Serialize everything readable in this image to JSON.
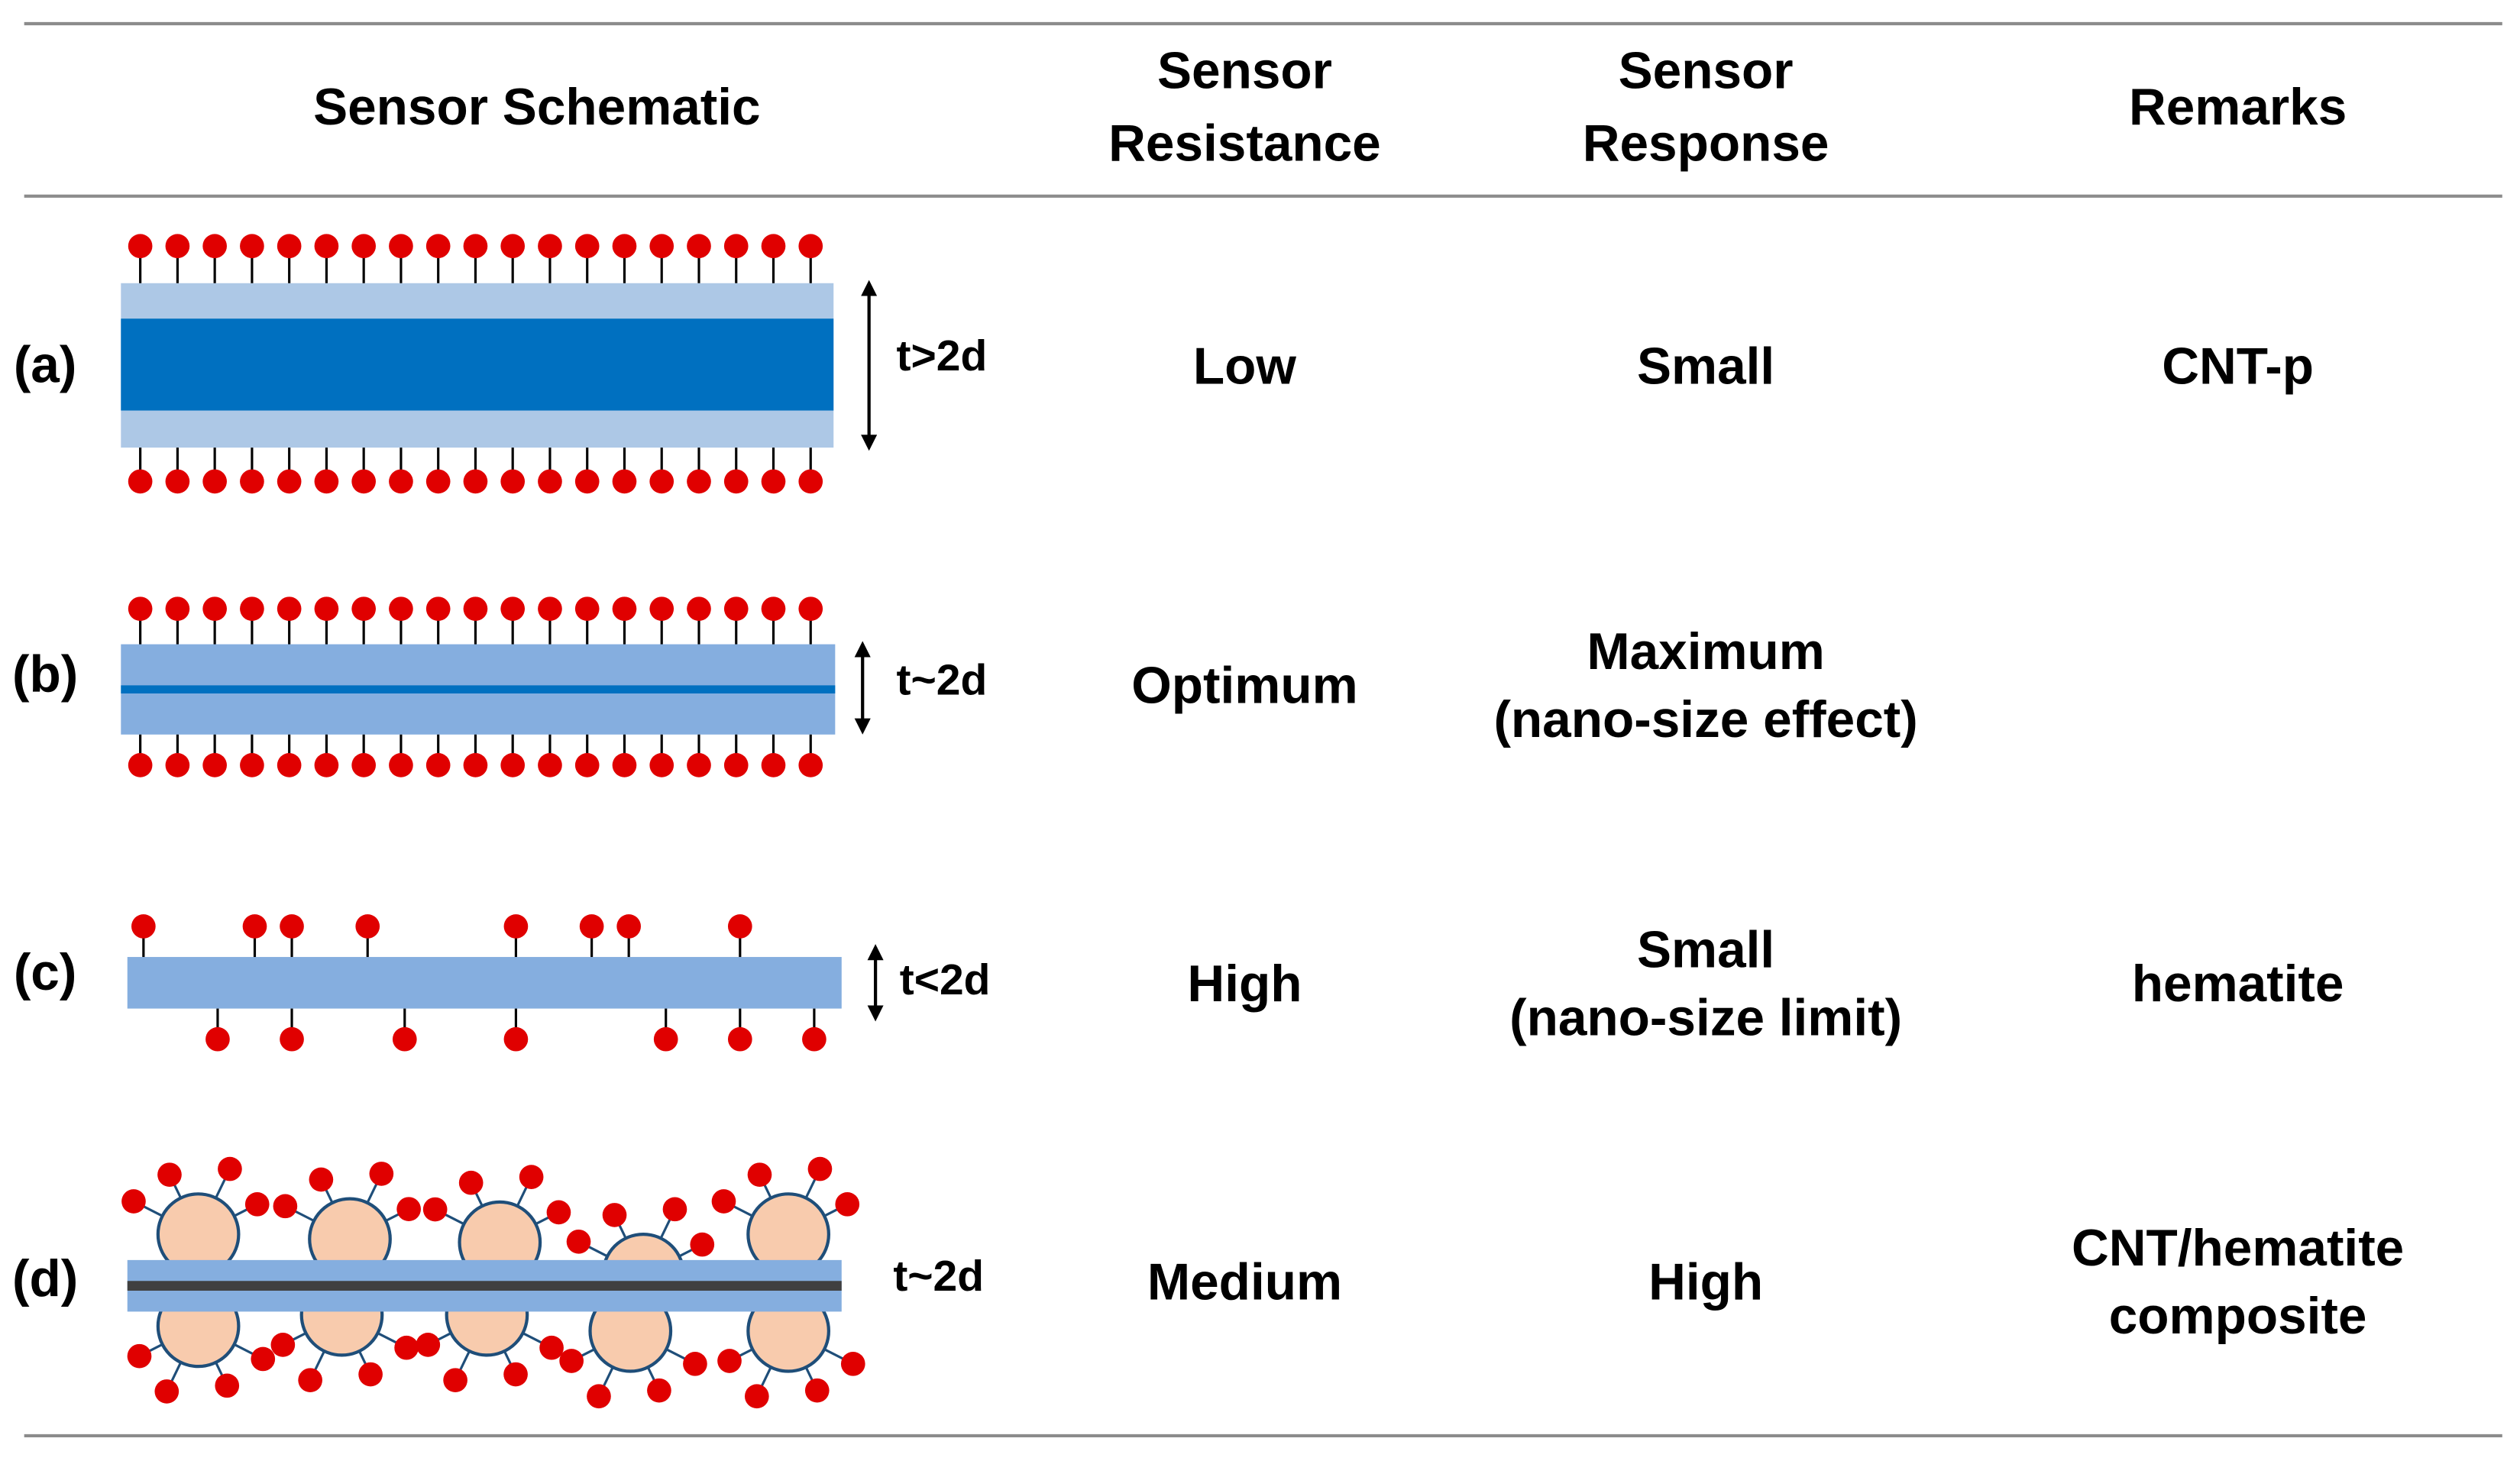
{
  "header": {
    "columns": [
      [
        "Sensor Schematic"
      ],
      [
        "Sensor",
        "Resistance"
      ],
      [
        "Sensor",
        "Response"
      ],
      [
        "Remarks"
      ]
    ]
  },
  "rows": [
    {
      "label": "(a)",
      "thickness": "t>2d",
      "resistance": "Low",
      "response": [
        "Small"
      ],
      "remarks": [
        "CNT-p"
      ]
    },
    {
      "label": "(b)",
      "thickness": "t~2d",
      "resistance": "Optimum",
      "response": [
        "Maximum",
        "(nano-size effect)"
      ]
    },
    {
      "label": "(c)",
      "thickness": "t<2d",
      "resistance": "High",
      "response": [
        "Small",
        "(nano-size limit)"
      ],
      "remarks": [
        "hematite"
      ]
    },
    {
      "label": "(d)",
      "thickness": "t~2d",
      "resistance": "Medium",
      "response": [
        "High"
      ],
      "remarks": [
        "CNT/hematite",
        "composite"
      ]
    }
  ]
}
